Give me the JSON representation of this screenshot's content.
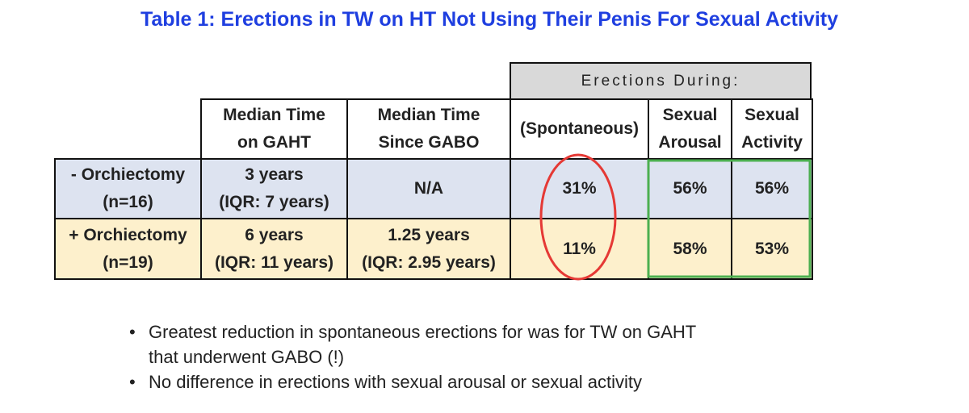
{
  "title": "Table 1: Erections in TW on HT Not Using Their Penis For Sexual Activity",
  "table": {
    "group_header": "Erections During:",
    "columns": [
      [
        "Median Time",
        "on GAHT"
      ],
      [
        "Median Time",
        "Since GABO"
      ],
      [
        "(Spontaneous)"
      ],
      [
        "Sexual",
        "Arousal"
      ],
      [
        "Sexual",
        "Activity"
      ]
    ],
    "rows": [
      {
        "label": [
          "- Orchiectomy",
          "(n=16)"
        ],
        "cells": [
          [
            "3 years",
            "(IQR: 7 years)"
          ],
          [
            "N/A"
          ],
          [
            "31%"
          ],
          [
            "56%"
          ],
          [
            "56%"
          ]
        ]
      },
      {
        "label": [
          "+ Orchiectomy",
          "(n=19)"
        ],
        "cells": [
          [
            "6 years",
            "(IQR: 11 years)"
          ],
          [
            "1.25 years",
            "(IQR: 2.95 years)"
          ],
          [
            "11%"
          ],
          [
            "58%"
          ],
          [
            "53%"
          ]
        ]
      }
    ]
  },
  "bullets": [
    "Greatest reduction in spontaneous erections for was for TW on GAHT that underwent GABO (!)",
    "No difference in erections with sexual arousal or sexual activity"
  ]
}
